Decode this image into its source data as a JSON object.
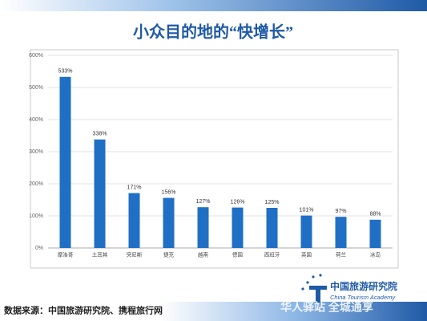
{
  "chart_data": {
    "type": "bar",
    "title": "小众目的地的“快增长”",
    "categories": [
      "摩洛哥",
      "土耳其",
      "突尼斯",
      "捷克",
      "越南",
      "德国",
      "西班牙",
      "英国",
      "荷兰",
      "冰岛"
    ],
    "values": [
      533,
      338,
      171,
      156,
      127,
      126,
      125,
      101,
      97,
      88
    ],
    "value_labels": [
      "533%",
      "338%",
      "171%",
      "156%",
      "127%",
      "126%",
      "125%",
      "101%",
      "97%",
      "88%"
    ],
    "color": "#1f6fc5",
    "ylim": [
      0,
      600
    ],
    "yticks": [
      {
        "value": 0,
        "label": "0%"
      },
      {
        "value": 100,
        "label": "100%"
      },
      {
        "value": 200,
        "label": "200%"
      },
      {
        "value": 300,
        "label": "300%"
      },
      {
        "value": 400,
        "label": "400%"
      },
      {
        "value": 500,
        "label": "500%"
      },
      {
        "value": 600,
        "label": "600%"
      }
    ],
    "grid": true
  },
  "source": "数据来源：中国旅游研究院、携程旅行网",
  "logo": {
    "name": "中国旅游研究院",
    "english": "China Tourism Academy"
  },
  "watermark": "华人驿站 全城通享"
}
